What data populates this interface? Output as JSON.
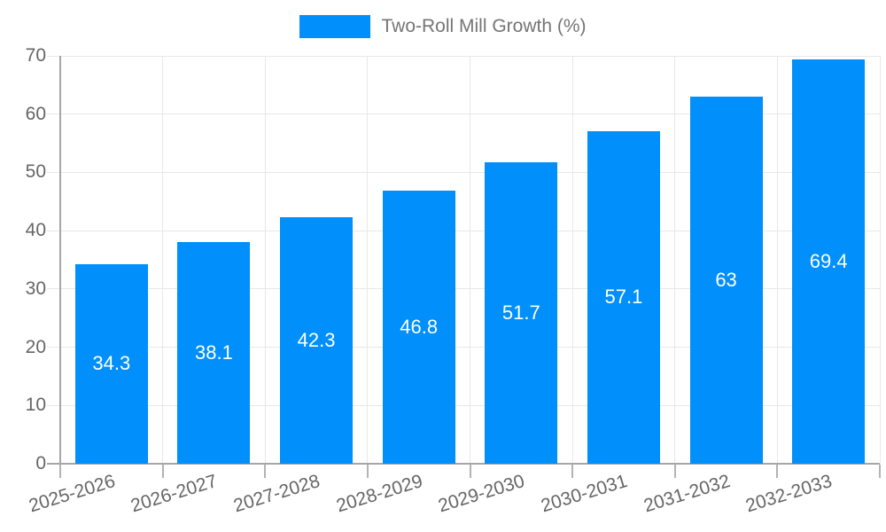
{
  "chart_data": {
    "type": "bar",
    "legend": "Two-Roll Mill Growth (%)",
    "legend_position": "top",
    "categories": [
      "2025-2026",
      "2026-2027",
      "2027-2028",
      "2028-2029",
      "2029-2030",
      "2030-2031",
      "2031-2032",
      "2032-2033"
    ],
    "values": [
      34.3,
      38.1,
      42.3,
      46.8,
      51.7,
      57.1,
      63,
      69.4
    ],
    "data_labels": [
      "34.3",
      "38.1",
      "42.3",
      "46.8",
      "51.7",
      "57.1",
      "63",
      "69.4"
    ],
    "ylim": [
      0,
      70
    ],
    "yticks": [
      0,
      10,
      20,
      30,
      40,
      50,
      60,
      70
    ],
    "grid": true,
    "bar_color": "#008FFB",
    "data_label_color": "#ffffff",
    "grid_color": "#e8e8e8",
    "axis_color": "#a6a6a6",
    "tick_color": "#b3b3b3",
    "tick_text_color": "#666666",
    "legend_text_color": "#757575"
  }
}
